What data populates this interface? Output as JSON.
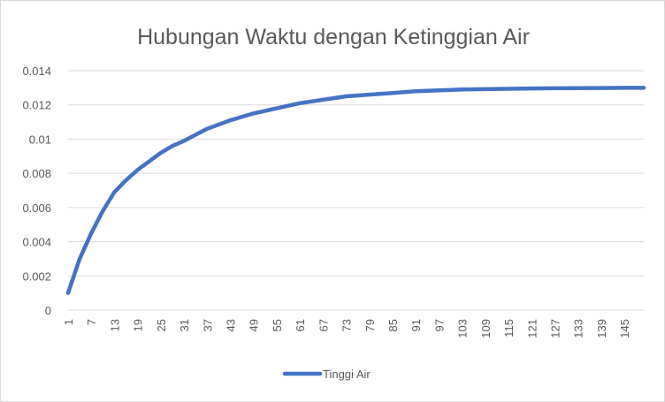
{
  "chart_data": {
    "type": "line",
    "title": "Hubungan Waktu dengan Ketinggian Air",
    "xlabel": "",
    "ylabel": "",
    "ylim": [
      0,
      0.014
    ],
    "y_ticks": [
      "0",
      "0.002",
      "0.004",
      "0.006",
      "0.008",
      "0.01",
      "0.012",
      "0.014"
    ],
    "x_tick_labels": [
      "1",
      "7",
      "13",
      "19",
      "25",
      "31",
      "37",
      "43",
      "49",
      "55",
      "61",
      "67",
      "73",
      "79",
      "85",
      "91",
      "97",
      "103",
      "109",
      "115",
      "121",
      "127",
      "133",
      "139",
      "145"
    ],
    "x_range": [
      1,
      150
    ],
    "grid": "horizontal",
    "legend": "bottom",
    "series": [
      {
        "name": "Tinggi Air",
        "color": "#4472C4",
        "x": [
          1,
          4,
          7,
          10,
          13,
          16,
          19,
          22,
          25,
          28,
          31,
          37,
          43,
          49,
          55,
          61,
          67,
          73,
          79,
          85,
          91,
          97,
          103,
          109,
          115,
          121,
          127,
          133,
          139,
          145,
          150
        ],
        "values": [
          0.001,
          0.003,
          0.0045,
          0.0058,
          0.0069,
          0.0076,
          0.0082,
          0.0087,
          0.0092,
          0.0096,
          0.0099,
          0.0106,
          0.0111,
          0.0115,
          0.0118,
          0.0121,
          0.0123,
          0.0125,
          0.0126,
          0.0127,
          0.0128,
          0.01285,
          0.0129,
          0.01292,
          0.01294,
          0.01296,
          0.01297,
          0.01298,
          0.01299,
          0.013,
          0.013
        ]
      }
    ]
  }
}
